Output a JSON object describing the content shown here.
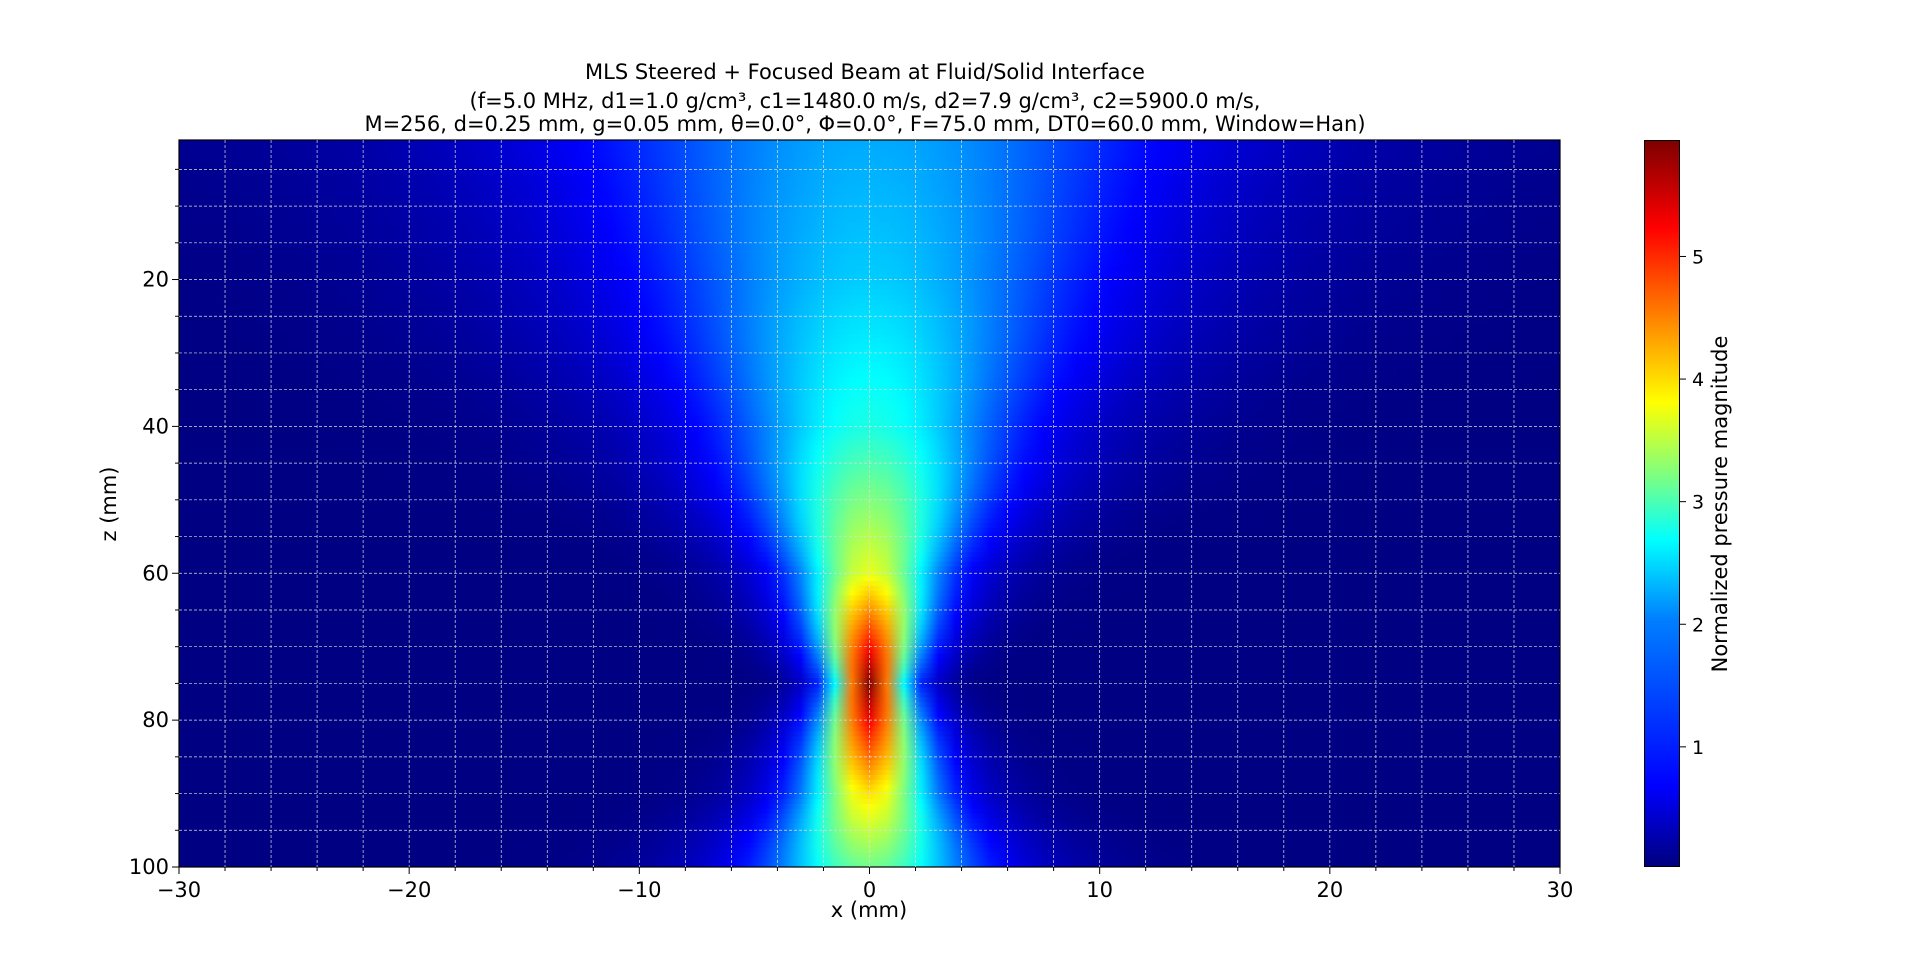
{
  "chart_data": {
    "type": "heatmap",
    "title": "MLS Steered + Focused Beam at Fluid/Solid Interface",
    "subtitle_lines": [
      "(f=5.0 MHz, d1=1.0 g/cm³, c1=1480.0 m/s, d2=7.9 g/cm³, c2=5900.0 m/s,",
      "M=256, d=0.25 mm, g=0.05 mm, θ=0.0°, Φ=0.0°, F=75.0 mm, DT0=60.0 mm, Window=Han)"
    ],
    "xlabel": "x (mm)",
    "ylabel": "z (mm)",
    "colorbar_label": "Normalized pressure magnitude",
    "xlim": [
      -30,
      30
    ],
    "ylim": [
      1,
      100
    ],
    "y_inverted": true,
    "xticks": [
      -30,
      -20,
      -10,
      0,
      10,
      20,
      30
    ],
    "xtick_labels": [
      "−30",
      "−20",
      "−10",
      "0",
      "10",
      "20",
      "30"
    ],
    "yticks": [
      20,
      40,
      60,
      80,
      100
    ],
    "ytick_labels": [
      "20",
      "40",
      "60",
      "80",
      "100"
    ],
    "colorbar_range": [
      0.02,
      5.95
    ],
    "colorbar_ticks": [
      1,
      2,
      3,
      4,
      5
    ],
    "colorbar_tick_labels": [
      "1",
      "2",
      "3",
      "4",
      "5"
    ],
    "colormap": "jet",
    "grid": true,
    "peak": {
      "x": 0,
      "z": 75,
      "value": 5.95
    },
    "beam_profile": [
      {
        "z": 1,
        "center_value": 1.75,
        "half_width": 11.0
      },
      {
        "z": 20,
        "center_value": 1.95,
        "half_width": 8.5
      },
      {
        "z": 40,
        "center_value": 2.4,
        "half_width": 5.5
      },
      {
        "z": 60,
        "center_value": 3.6,
        "half_width": 2.6
      },
      {
        "z": 75,
        "center_value": 5.95,
        "half_width": 1.2
      },
      {
        "z": 90,
        "center_value": 3.9,
        "half_width": 2.4
      },
      {
        "z": 100,
        "center_value": 2.9,
        "half_width": 3.8
      }
    ]
  }
}
